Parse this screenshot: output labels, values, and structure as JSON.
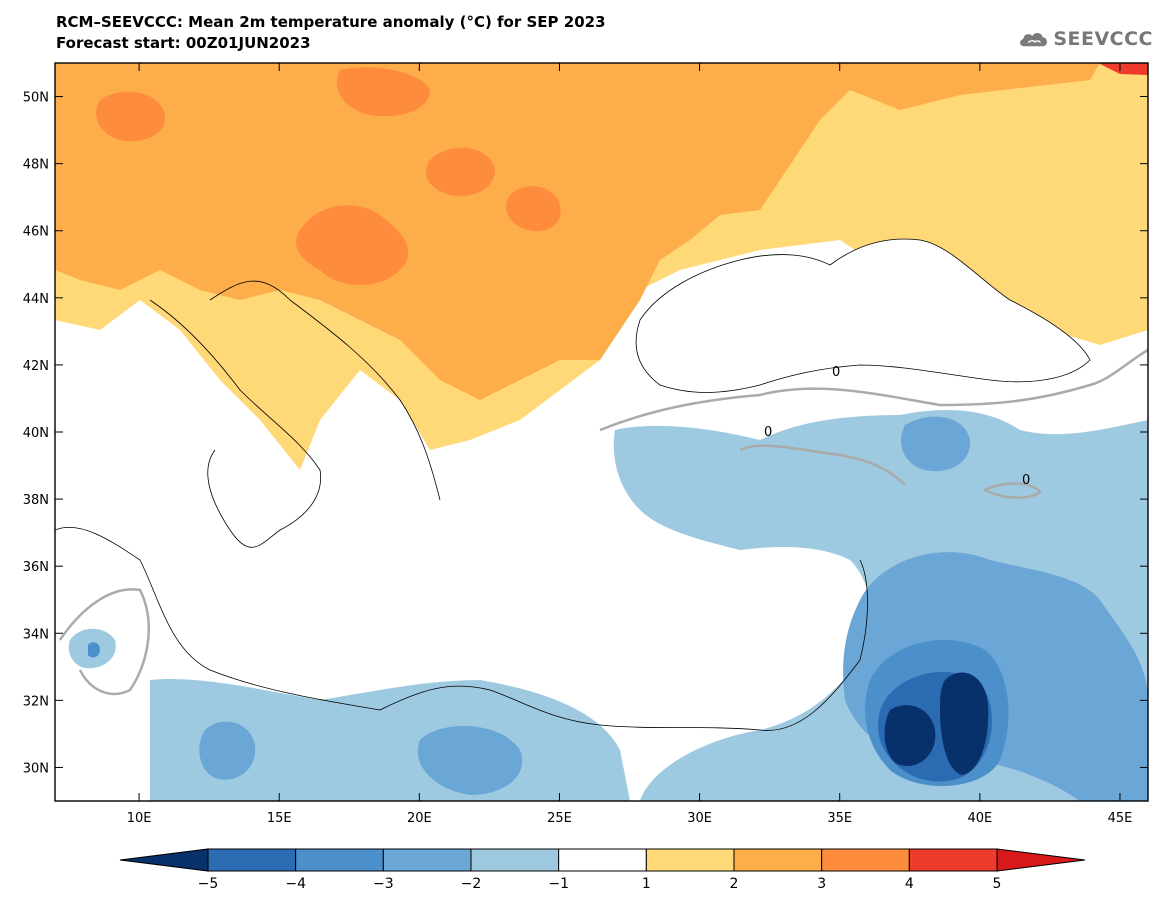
{
  "header": {
    "title": "RCM–SEEVCCC: Mean 2m temperature anomaly (°C) for SEP 2023",
    "subtitle": "Forecast start: 00Z01JUN2023"
  },
  "logo": {
    "text": "SEEVCCC",
    "icon": "cloud-icon"
  },
  "map": {
    "lat_labels": [
      "50N",
      "48N",
      "46N",
      "44N",
      "42N",
      "40N",
      "38N",
      "36N",
      "34N",
      "32N",
      "30N"
    ],
    "lon_labels": [
      "10E",
      "15E",
      "20E",
      "25E",
      "30E",
      "35E",
      "40E",
      "45E"
    ],
    "lat_values": [
      50,
      48,
      46,
      44,
      42,
      40,
      38,
      36,
      34,
      32,
      30
    ],
    "lon_values": [
      10,
      15,
      20,
      25,
      30,
      35,
      40,
      45
    ],
    "extent": {
      "lon_min": 7,
      "lon_max": 46,
      "lat_min": 29,
      "lat_max": 51
    },
    "contour_label": "0"
  },
  "colorbar": {
    "labels": [
      "−5",
      "−4",
      "−3",
      "−2",
      "−1",
      "1",
      "2",
      "3",
      "4",
      "5"
    ],
    "values": [
      -5,
      -4,
      -3,
      -2,
      -1,
      1,
      2,
      3,
      4,
      5
    ],
    "colors": [
      "#08306b",
      "#2a6bb1",
      "#4b8fcb",
      "#6aa6d6",
      "#9ecae1",
      "#ffffff",
      "#ffd978",
      "#fdae4b",
      "#fd8d3c",
      "#ef3b2c",
      "#d7191c"
    ]
  }
}
